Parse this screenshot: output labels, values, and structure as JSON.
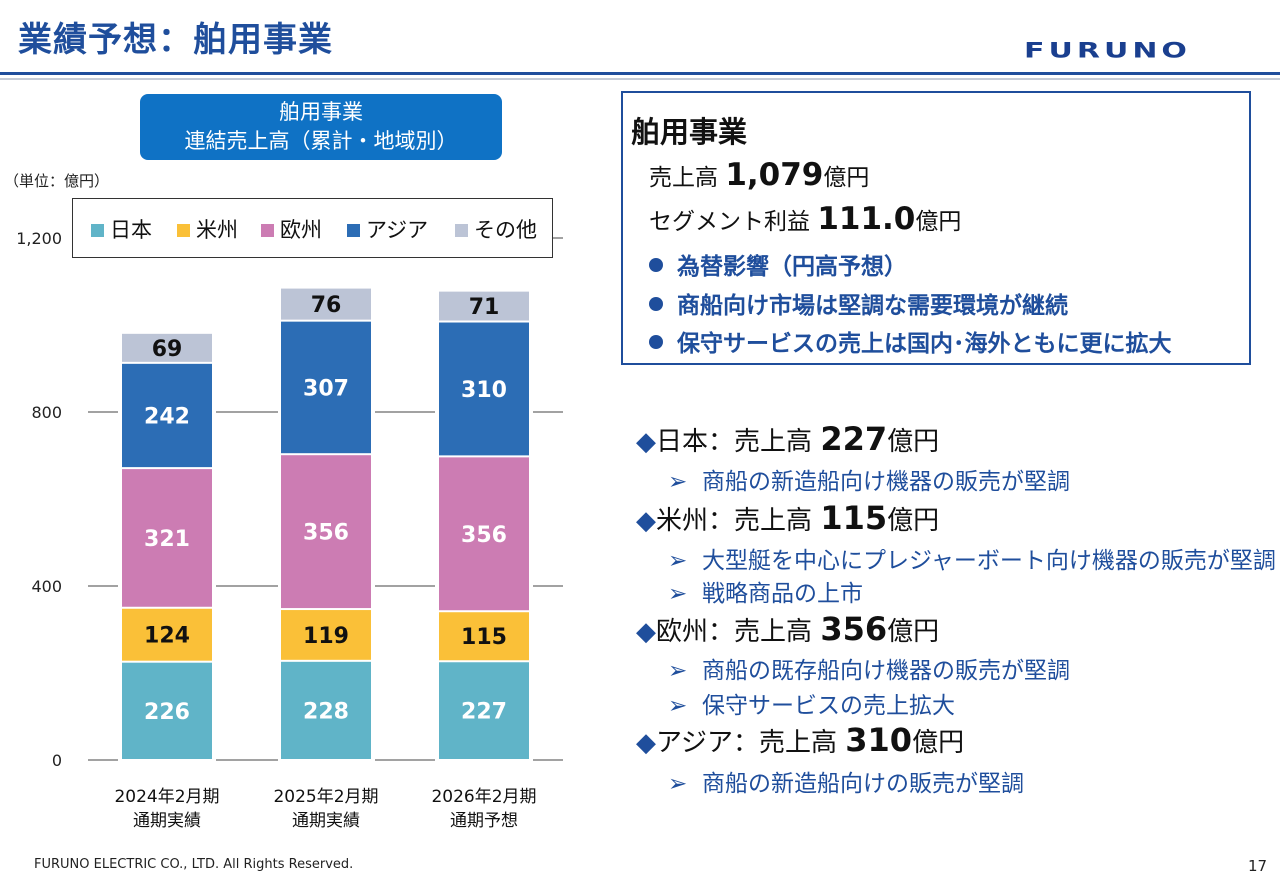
{
  "header": {
    "title": "業績予想：舶用事業",
    "logo": "FURUNO"
  },
  "chart_badge": {
    "line1": "舶用事業",
    "line2": "連結売上高（累計・地域別）"
  },
  "unit_label": "（単位：億円）",
  "colors": {
    "japan": "#60b4c8",
    "americas": "#fac038",
    "europe": "#cc7cb3",
    "asia": "#2c6db5",
    "other": "#bcc4d6",
    "accent": "#1f4e9c"
  },
  "chart_data": {
    "type": "bar",
    "stacked": true,
    "categories": [
      [
        "2024年2月期",
        "通期実績"
      ],
      [
        "2025年2月期",
        "通期実績"
      ],
      [
        "2026年2月期",
        "通期予想"
      ]
    ],
    "series": [
      {
        "name": "日本",
        "color": "#60b4c8",
        "values": [
          226,
          228,
          227
        ]
      },
      {
        "name": "米州",
        "color": "#fac038",
        "values": [
          124,
          119,
          115
        ]
      },
      {
        "name": "欧州",
        "color": "#cc7cb3",
        "values": [
          321,
          356,
          356
        ]
      },
      {
        "name": "アジア",
        "color": "#2c6db5",
        "values": [
          242,
          307,
          310
        ]
      },
      {
        "name": "その他",
        "color": "#bcc4d6",
        "values": [
          69,
          76,
          71
        ]
      }
    ],
    "yticks": [
      0,
      400,
      800,
      1200
    ],
    "ytick_labels": [
      "0",
      "400",
      "800",
      "1,200"
    ],
    "ylim": [
      0,
      1200
    ],
    "grid": true,
    "legend": "top"
  },
  "info_box": {
    "title": "舶用事業",
    "sales_label": "売上高",
    "sales_value": "1,079",
    "sales_unit": "億円",
    "profit_label": "セグメント利益",
    "profit_value": "111.0",
    "profit_unit": "億円",
    "bullets": [
      "為替影響（円高予想）",
      "商船向け市場は堅調な需要環境が継続",
      "保守サービスの売上は国内･海外ともに更に拡大"
    ]
  },
  "regions": [
    {
      "name": "日本",
      "label": "売上高",
      "value": "227",
      "unit": "億円",
      "points": [
        "商船の新造船向け機器の販売が堅調"
      ]
    },
    {
      "name": "米州",
      "label": "売上高",
      "value": "115",
      "unit": "億円",
      "points": [
        "大型艇を中心にプレジャーボート向け機器の販売が堅調",
        "戦略商品の上市"
      ]
    },
    {
      "name": "欧州",
      "label": "売上高",
      "value": "356",
      "unit": "億円",
      "points": [
        "商船の既存船向け機器の販売が堅調",
        "保守サービスの売上拡大"
      ]
    },
    {
      "name": "アジア",
      "label": "売上高",
      "value": "310",
      "unit": "億円",
      "points": [
        "商船の新造船向けの販売が堅調"
      ]
    }
  ],
  "footer": {
    "copyright": "FURUNO ELECTRIC CO., LTD. All Rights Reserved.",
    "page": "17"
  }
}
